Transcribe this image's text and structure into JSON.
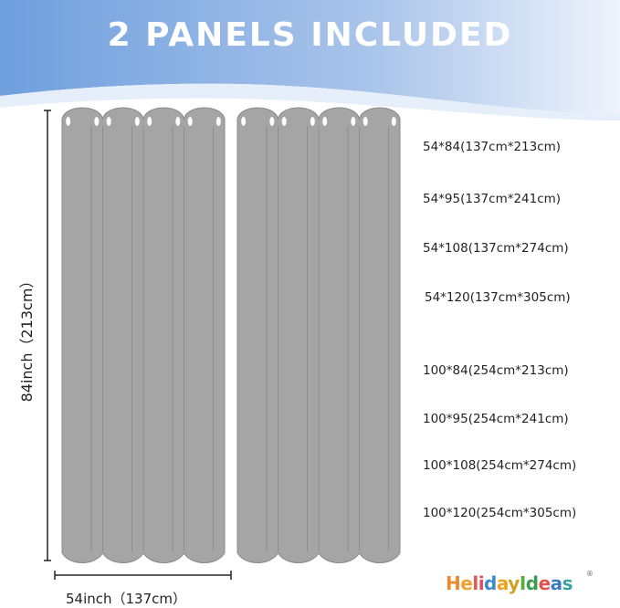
{
  "header": {
    "title": "2 PANELS INCLUDED",
    "gradient": [
      "#6f9fdd",
      "#eef3fb"
    ]
  },
  "panel_color": "#a5a5a5",
  "dimensions": {
    "height_label": "84inch（213cm）",
    "width_label": "54inch（137cm）"
  },
  "sizes": [
    "54*84(137cm*213cm)",
    "54*95(137cm*241cm)",
    "54*108(137cm*274cm)",
    "54*120(137cm*305cm)",
    "100*84(254cm*213cm)",
    "100*95(254cm*241cm)",
    "100*108(254cm*274cm)",
    "100*120(254cm*305cm)"
  ],
  "brand": {
    "logo_text": "HelidayIdeas",
    "registered": "®"
  }
}
